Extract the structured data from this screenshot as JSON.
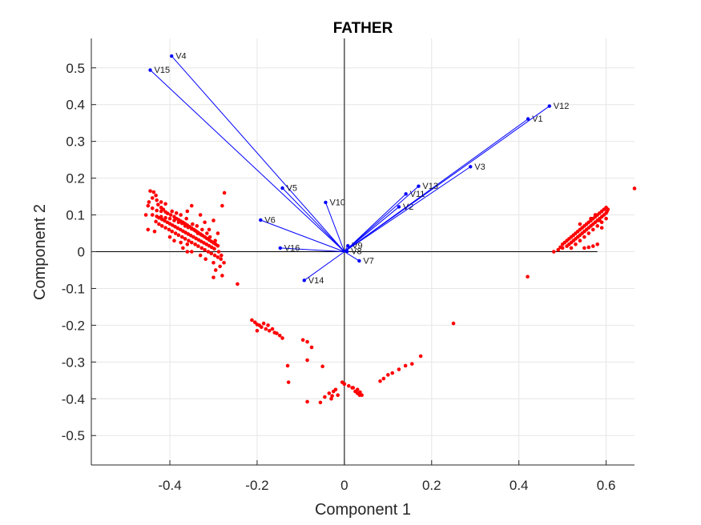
{
  "chart_data": {
    "type": "scatter",
    "title": "FATHER",
    "xlabel": "Component 1",
    "ylabel": "Component 2",
    "xlim": [
      -0.58,
      0.665
    ],
    "ylim": [
      -0.58,
      0.58
    ],
    "grid": true,
    "x_ticks": [
      -0.4,
      -0.2,
      0,
      0.2,
      0.4,
      0.6
    ],
    "x_tick_labels": [
      "-0.4",
      "-0.2",
      "0",
      "0.2",
      "0.4",
      "0.6"
    ],
    "y_ticks": [
      -0.5,
      -0.4,
      -0.3,
      -0.2,
      -0.1,
      0,
      0.1,
      0.2,
      0.3,
      0.4,
      0.5
    ],
    "y_tick_labels": [
      "-0.5",
      "-0.4",
      "-0.3",
      "-0.2",
      "-0.1",
      "0",
      "0.1",
      "0.2",
      "0.3",
      "0.4",
      "0.5"
    ],
    "reference_lines": {
      "x_axis_span": [
        -0.58,
        0.58
      ],
      "y_axis_span": [
        -0.58,
        0.58
      ],
      "color": "#000000"
    },
    "vector_color": "#0000ff",
    "point_color": "#ff0000",
    "vectors": [
      {
        "label": "V1",
        "x": 0.421,
        "y": 0.361
      },
      {
        "label": "V2",
        "x": 0.125,
        "y": 0.122
      },
      {
        "label": "V3",
        "x": 0.289,
        "y": 0.231
      },
      {
        "label": "V4",
        "x": -0.396,
        "y": 0.532
      },
      {
        "label": "V5",
        "x": -0.142,
        "y": 0.173
      },
      {
        "label": "V6",
        "x": -0.192,
        "y": 0.086
      },
      {
        "label": "V7",
        "x": 0.034,
        "y": -0.025
      },
      {
        "label": "V8",
        "x": 0.006,
        "y": 0.001
      },
      {
        "label": "V9",
        "x": 0.008,
        "y": 0.016
      },
      {
        "label": "V10",
        "x": -0.043,
        "y": 0.134
      },
      {
        "label": "V11",
        "x": 0.141,
        "y": 0.157
      },
      {
        "label": "V12",
        "x": 0.47,
        "y": 0.396
      },
      {
        "label": "V13",
        "x": 0.17,
        "y": 0.178
      },
      {
        "label": "V14",
        "x": -0.092,
        "y": -0.078
      },
      {
        "label": "V15",
        "x": -0.445,
        "y": 0.494
      },
      {
        "label": "V16",
        "x": -0.147,
        "y": 0.01
      }
    ],
    "points": [
      [
        -0.445,
        0.165
      ],
      [
        -0.437,
        0.162
      ],
      [
        -0.432,
        0.153
      ],
      [
        -0.44,
        0.146
      ],
      [
        -0.43,
        0.14
      ],
      [
        -0.42,
        0.135
      ],
      [
        -0.41,
        0.13
      ],
      [
        -0.427,
        0.128
      ],
      [
        -0.45,
        0.125
      ],
      [
        -0.44,
        0.118
      ],
      [
        -0.43,
        0.112
      ],
      [
        -0.42,
        0.11
      ],
      [
        -0.41,
        0.108
      ],
      [
        -0.405,
        0.104
      ],
      [
        -0.398,
        0.1
      ],
      [
        -0.39,
        0.095
      ],
      [
        -0.385,
        0.09
      ],
      [
        -0.38,
        0.087
      ],
      [
        -0.375,
        0.083
      ],
      [
        -0.37,
        0.08
      ],
      [
        -0.365,
        0.076
      ],
      [
        -0.36,
        0.072
      ],
      [
        -0.355,
        0.068
      ],
      [
        -0.35,
        0.064
      ],
      [
        -0.345,
        0.06
      ],
      [
        -0.34,
        0.056
      ],
      [
        -0.335,
        0.052
      ],
      [
        -0.33,
        0.048
      ],
      [
        -0.325,
        0.044
      ],
      [
        -0.32,
        0.04
      ],
      [
        -0.315,
        0.036
      ],
      [
        -0.31,
        0.032
      ],
      [
        -0.305,
        0.028
      ],
      [
        -0.3,
        0.024
      ],
      [
        -0.295,
        0.02
      ],
      [
        -0.29,
        0.016
      ],
      [
        -0.44,
        0.1
      ],
      [
        -0.43,
        0.096
      ],
      [
        -0.425,
        0.092
      ],
      [
        -0.418,
        0.088
      ],
      [
        -0.412,
        0.084
      ],
      [
        -0.406,
        0.08
      ],
      [
        -0.4,
        0.076
      ],
      [
        -0.394,
        0.072
      ],
      [
        -0.388,
        0.068
      ],
      [
        -0.382,
        0.064
      ],
      [
        -0.376,
        0.06
      ],
      [
        -0.37,
        0.056
      ],
      [
        -0.364,
        0.052
      ],
      [
        -0.358,
        0.048
      ],
      [
        -0.352,
        0.044
      ],
      [
        -0.346,
        0.04
      ],
      [
        -0.34,
        0.036
      ],
      [
        -0.334,
        0.032
      ],
      [
        -0.328,
        0.028
      ],
      [
        -0.322,
        0.024
      ],
      [
        -0.316,
        0.02
      ],
      [
        -0.31,
        0.016
      ],
      [
        -0.304,
        0.012
      ],
      [
        -0.298,
        0.008
      ],
      [
        -0.42,
        0.095
      ],
      [
        -0.41,
        0.092
      ],
      [
        -0.4,
        0.09
      ],
      [
        -0.39,
        0.085
      ],
      [
        -0.38,
        0.08
      ],
      [
        -0.372,
        0.077
      ],
      [
        -0.365,
        0.07
      ],
      [
        -0.358,
        0.066
      ],
      [
        -0.35,
        0.062
      ],
      [
        -0.343,
        0.058
      ],
      [
        -0.336,
        0.05
      ],
      [
        -0.328,
        0.046
      ],
      [
        -0.432,
        0.082
      ],
      [
        -0.425,
        0.075
      ],
      [
        -0.418,
        0.07
      ],
      [
        -0.41,
        0.065
      ],
      [
        -0.402,
        0.06
      ],
      [
        -0.395,
        0.055
      ],
      [
        -0.387,
        0.05
      ],
      [
        -0.38,
        0.045
      ],
      [
        -0.372,
        0.04
      ],
      [
        -0.365,
        0.035
      ],
      [
        -0.357,
        0.03
      ],
      [
        -0.35,
        0.025
      ],
      [
        -0.342,
        0.02
      ],
      [
        -0.335,
        0.015
      ],
      [
        -0.327,
        0.01
      ],
      [
        -0.32,
        0.005
      ],
      [
        -0.312,
        0.0
      ],
      [
        -0.305,
        -0.005
      ],
      [
        -0.297,
        -0.01
      ],
      [
        -0.29,
        -0.015
      ],
      [
        -0.283,
        -0.02
      ],
      [
        -0.276,
        -0.03
      ],
      [
        -0.285,
        -0.04
      ],
      [
        -0.295,
        -0.05
      ],
      [
        -0.3,
        -0.07
      ],
      [
        -0.28,
        -0.065
      ],
      [
        -0.245,
        -0.088
      ],
      [
        -0.275,
        0.16
      ],
      [
        -0.28,
        0.125
      ],
      [
        -0.35,
        0.125
      ],
      [
        -0.36,
        0.11
      ],
      [
        -0.33,
        0.1
      ],
      [
        -0.32,
        0.08
      ],
      [
        -0.31,
        0.06
      ],
      [
        -0.3,
        0.085
      ],
      [
        -0.29,
        0.05
      ],
      [
        -0.36,
        0.02
      ],
      [
        -0.37,
        0.01
      ],
      [
        -0.35,
        0.0
      ],
      [
        -0.33,
        -0.01
      ],
      [
        -0.45,
        0.06
      ],
      [
        -0.455,
        0.1
      ],
      [
        -0.448,
        0.135
      ],
      [
        -0.435,
        0.055
      ],
      [
        -0.4,
        0.04
      ],
      [
        -0.39,
        0.03
      ],
      [
        -0.375,
        0.025
      ],
      [
        -0.36,
        0.0
      ],
      [
        -0.318,
        -0.02
      ],
      [
        -0.3,
        -0.03
      ],
      [
        -0.42,
        0.12
      ],
      [
        -0.415,
        0.115
      ],
      [
        -0.395,
        0.11
      ],
      [
        -0.385,
        0.105
      ],
      [
        -0.375,
        0.1
      ],
      [
        -0.362,
        0.09
      ],
      [
        -0.348,
        0.075
      ],
      [
        -0.338,
        0.07
      ],
      [
        -0.326,
        0.06
      ],
      [
        -0.315,
        0.05
      ],
      [
        -0.308,
        0.04
      ],
      [
        -0.296,
        0.03
      ],
      [
        -0.288,
        0.0
      ],
      [
        -0.282,
        -0.01
      ],
      [
        -0.212,
        -0.186
      ],
      [
        -0.205,
        -0.192
      ],
      [
        -0.2,
        -0.198
      ],
      [
        -0.195,
        -0.2
      ],
      [
        -0.19,
        -0.205
      ],
      [
        -0.185,
        -0.195
      ],
      [
        -0.18,
        -0.21
      ],
      [
        -0.172,
        -0.215
      ],
      [
        -0.165,
        -0.21
      ],
      [
        -0.16,
        -0.22
      ],
      [
        -0.155,
        -0.222
      ],
      [
        -0.148,
        -0.228
      ],
      [
        -0.142,
        -0.235
      ],
      [
        -0.2,
        -0.215
      ],
      [
        -0.175,
        -0.2
      ],
      [
        -0.095,
        -0.24
      ],
      [
        -0.085,
        -0.245
      ],
      [
        -0.075,
        -0.26
      ],
      [
        -0.13,
        -0.31
      ],
      [
        -0.085,
        -0.295
      ],
      [
        -0.05,
        -0.312
      ],
      [
        -0.128,
        -0.355
      ],
      [
        -0.085,
        -0.408
      ],
      [
        -0.055,
        -0.41
      ],
      [
        -0.045,
        -0.395
      ],
      [
        -0.035,
        -0.385
      ],
      [
        -0.025,
        -0.38
      ],
      [
        -0.015,
        -0.39
      ],
      [
        -0.005,
        -0.355
      ],
      [
        0.01,
        -0.365
      ],
      [
        0.02,
        -0.37
      ],
      [
        0.025,
        -0.38
      ],
      [
        0.03,
        -0.385
      ],
      [
        0.035,
        -0.39
      ],
      [
        0.03,
        -0.375
      ],
      [
        0.04,
        -0.39
      ],
      [
        0.0,
        -0.36
      ],
      [
        -0.028,
        -0.392
      ],
      [
        -0.03,
        -0.4
      ],
      [
        -0.02,
        -0.375
      ],
      [
        0.082,
        -0.352
      ],
      [
        0.09,
        -0.345
      ],
      [
        0.1,
        -0.335
      ],
      [
        0.11,
        -0.33
      ],
      [
        0.125,
        -0.32
      ],
      [
        0.14,
        -0.31
      ],
      [
        0.155,
        -0.305
      ],
      [
        0.175,
        -0.284
      ],
      [
        0.25,
        -0.195
      ],
      [
        0.0,
        -0.36
      ],
      [
        0.018,
        -0.37
      ],
      [
        0.036,
        -0.382
      ],
      [
        0.48,
        0.0
      ],
      [
        0.49,
        0.005
      ],
      [
        0.5,
        0.01
      ],
      [
        0.51,
        0.015
      ],
      [
        0.515,
        0.02
      ],
      [
        0.52,
        0.025
      ],
      [
        0.525,
        0.03
      ],
      [
        0.53,
        0.035
      ],
      [
        0.535,
        0.04
      ],
      [
        0.54,
        0.045
      ],
      [
        0.545,
        0.05
      ],
      [
        0.55,
        0.055
      ],
      [
        0.555,
        0.06
      ],
      [
        0.56,
        0.065
      ],
      [
        0.565,
        0.07
      ],
      [
        0.57,
        0.075
      ],
      [
        0.575,
        0.08
      ],
      [
        0.58,
        0.085
      ],
      [
        0.585,
        0.09
      ],
      [
        0.59,
        0.095
      ],
      [
        0.595,
        0.1
      ],
      [
        0.6,
        0.105
      ],
      [
        0.602,
        0.11
      ],
      [
        0.604,
        0.115
      ],
      [
        0.51,
        0.03
      ],
      [
        0.52,
        0.04
      ],
      [
        0.53,
        0.05
      ],
      [
        0.54,
        0.06
      ],
      [
        0.55,
        0.07
      ],
      [
        0.56,
        0.08
      ],
      [
        0.57,
        0.09
      ],
      [
        0.58,
        0.1
      ],
      [
        0.59,
        0.11
      ],
      [
        0.6,
        0.12
      ],
      [
        0.52,
        0.01
      ],
      [
        0.53,
        0.02
      ],
      [
        0.54,
        0.03
      ],
      [
        0.55,
        0.04
      ],
      [
        0.56,
        0.05
      ],
      [
        0.57,
        0.06
      ],
      [
        0.58,
        0.07
      ],
      [
        0.59,
        0.08
      ],
      [
        0.6,
        0.09
      ],
      [
        0.55,
        0.01
      ],
      [
        0.56,
        0.012
      ],
      [
        0.57,
        0.015
      ],
      [
        0.58,
        0.02
      ],
      [
        0.54,
        0.075
      ],
      [
        0.565,
        0.09
      ],
      [
        0.575,
        0.1
      ],
      [
        0.585,
        0.105
      ],
      [
        0.595,
        0.115
      ],
      [
        0.5,
        0.02
      ],
      [
        0.495,
        0.012
      ],
      [
        0.505,
        0.025
      ],
      [
        0.545,
        0.065
      ],
      [
        0.555,
        0.075
      ],
      [
        0.565,
        0.085
      ],
      [
        0.575,
        0.095
      ],
      [
        0.585,
        0.085
      ],
      [
        0.59,
        0.065
      ],
      [
        0.535,
        0.055
      ],
      [
        0.525,
        0.045
      ],
      [
        0.515,
        0.035
      ],
      [
        0.42,
        -0.068
      ],
      [
        0.665,
        0.172
      ]
    ]
  }
}
